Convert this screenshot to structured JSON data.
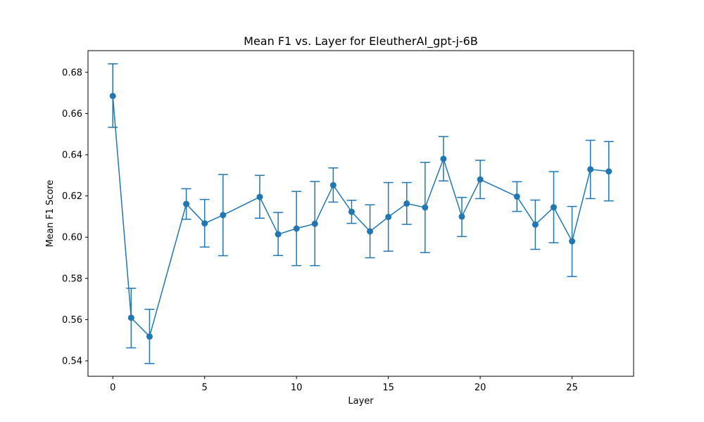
{
  "chart_data": {
    "type": "line",
    "title": "Mean F1 vs. Layer for EleutherAI_gpt-j-6B",
    "xlabel": "Layer",
    "ylabel": "Mean F1 Score",
    "xlim": [
      -1.35,
      28.35
    ],
    "ylim": [
      0.5325,
      0.6905
    ],
    "xticks": [
      0,
      5,
      10,
      15,
      20,
      25
    ],
    "xtick_labels": [
      "0",
      "5",
      "10",
      "15",
      "20",
      "25"
    ],
    "yticks": [
      0.54,
      0.56,
      0.58,
      0.6,
      0.62,
      0.64,
      0.66,
      0.68
    ],
    "ytick_labels": [
      "0.54",
      "0.56",
      "0.58",
      "0.60",
      "0.62",
      "0.64",
      "0.66",
      "0.68"
    ],
    "grid": false,
    "color": "#1f77b4",
    "series": [
      {
        "x": [
          0,
          1,
          2,
          4,
          5,
          6,
          8,
          9,
          10,
          11,
          12,
          13,
          14,
          15,
          16,
          17,
          18,
          19,
          20,
          22,
          23,
          24,
          25,
          26,
          27
        ],
        "y": [
          0.6685,
          0.5609,
          0.5518,
          0.6161,
          0.6067,
          0.6107,
          0.6195,
          0.6014,
          0.6042,
          0.6065,
          0.6252,
          0.6123,
          0.6028,
          0.6098,
          0.6163,
          0.6144,
          0.638,
          0.61,
          0.628,
          0.6197,
          0.6061,
          0.6145,
          0.598,
          0.6329,
          0.6319
        ],
        "yerr_low": [
          0.6533,
          0.5463,
          0.5387,
          0.6087,
          0.5952,
          0.591,
          0.6092,
          0.5911,
          0.5862,
          0.5862,
          0.617,
          0.6067,
          0.59,
          0.5932,
          0.6062,
          0.5925,
          0.6273,
          0.6003,
          0.6187,
          0.6125,
          0.5941,
          0.5973,
          0.5809,
          0.6187,
          0.6176
        ],
        "yerr_high": [
          0.6841,
          0.5752,
          0.565,
          0.6235,
          0.6183,
          0.6304,
          0.63,
          0.612,
          0.6222,
          0.627,
          0.6336,
          0.6179,
          0.6157,
          0.6265,
          0.6265,
          0.6363,
          0.6488,
          0.6193,
          0.6373,
          0.6269,
          0.618,
          0.6318,
          0.6149,
          0.647,
          0.6464
        ]
      }
    ]
  }
}
